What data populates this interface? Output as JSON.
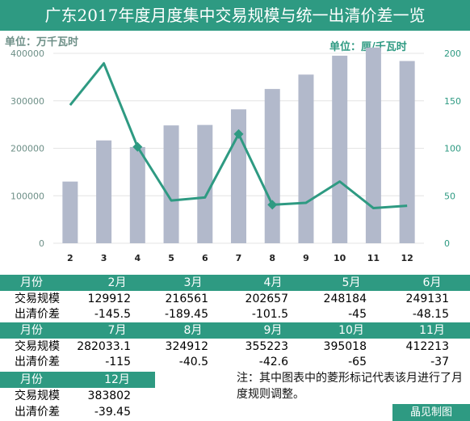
{
  "title": "广东2017年度月度集中交易规模与统一出清价差一览",
  "unit_left": "单位：万千瓦时",
  "unit_right": "单位：厘/千瓦时",
  "chart_data": {
    "type": "bar+line",
    "categories": [
      "2",
      "3",
      "4",
      "5",
      "6",
      "7",
      "8",
      "9",
      "10",
      "11",
      "12"
    ],
    "series": [
      {
        "type": "bar",
        "axis": "left",
        "values": [
          129912,
          216561,
          202657,
          248184,
          249131,
          282033.1,
          324912,
          355223,
          395018,
          412213,
          383802
        ]
      },
      {
        "type": "line",
        "axis": "right",
        "values": [
          145.5,
          189.45,
          101.5,
          45,
          48.15,
          115,
          40.5,
          42.6,
          65,
          37,
          39.45
        ],
        "markers": "diamond on 4, 7, 8"
      }
    ],
    "left_ticks": [
      "0",
      "100000",
      "200000",
      "300000",
      "400000"
    ],
    "right_ticks": [
      "0",
      "50",
      "100",
      "150",
      "200"
    ],
    "ylim_left": [
      0,
      400000
    ],
    "ylim_right": [
      0,
      200
    ],
    "colors": {
      "bar": "#b2b9cb",
      "line": "#2e9a82",
      "header": "#2e9a82",
      "left_axis": "#6d8f87",
      "right_axis": "#2e9a82"
    }
  },
  "table": {
    "row_labels": {
      "month": "月份",
      "scale": "交易规模",
      "spread": "出清价差"
    },
    "groups": [
      {
        "months": [
          "2月",
          "3月",
          "4月",
          "5月",
          "6月"
        ],
        "scale": [
          "129912",
          "216561",
          "202657",
          "248184",
          "249131"
        ],
        "spread": [
          "-145.5",
          "-189.45",
          "-101.5",
          "-45",
          "-48.15"
        ]
      },
      {
        "months": [
          "7月",
          "8月",
          "9月",
          "10月",
          "11月"
        ],
        "scale": [
          "282033.1",
          "324912",
          "355223",
          "395018",
          "412213"
        ],
        "spread": [
          "-115",
          "-40.5",
          "-42.6",
          "-65",
          "-37"
        ]
      },
      {
        "months": [
          "12月"
        ],
        "scale": [
          "383802"
        ],
        "spread": [
          "-39.45"
        ]
      }
    ]
  },
  "note": "注：其中图表中的菱形标记代表该月进行了月度规则调整。",
  "credit": "晶见制图"
}
